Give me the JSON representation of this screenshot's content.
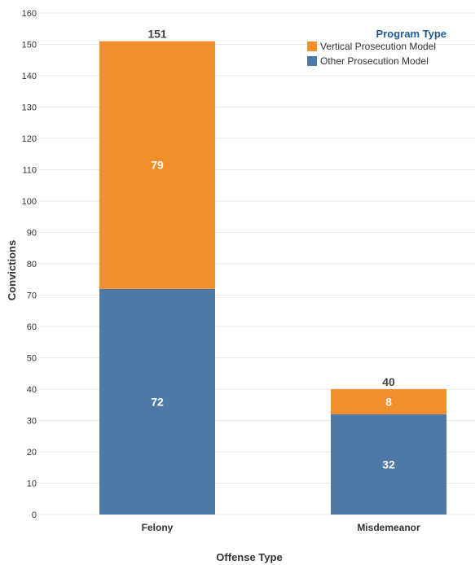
{
  "chart_data": {
    "type": "bar",
    "stacked": true,
    "categories": [
      "Felony",
      "Misdemeanor"
    ],
    "series": [
      {
        "name": "Other Prosecution Model",
        "values": [
          72,
          32
        ],
        "color": "#4e79a7"
      },
      {
        "name": "Vertical Prosecution Model",
        "values": [
          79,
          8
        ],
        "color": "#f28e2b"
      }
    ],
    "totals": [
      151,
      40
    ],
    "xlabel": "Offense Type",
    "ylabel": "Convictions",
    "ylim": [
      0,
      160
    ],
    "yticks": [
      0,
      10,
      20,
      30,
      40,
      50,
      60,
      70,
      80,
      90,
      100,
      110,
      120,
      130,
      140,
      150,
      160
    ],
    "grid": true,
    "legend": {
      "title": "Program Type",
      "placement": "top-right",
      "items": [
        "Vertical Prosecution Model",
        "Other Prosecution Model"
      ]
    }
  }
}
